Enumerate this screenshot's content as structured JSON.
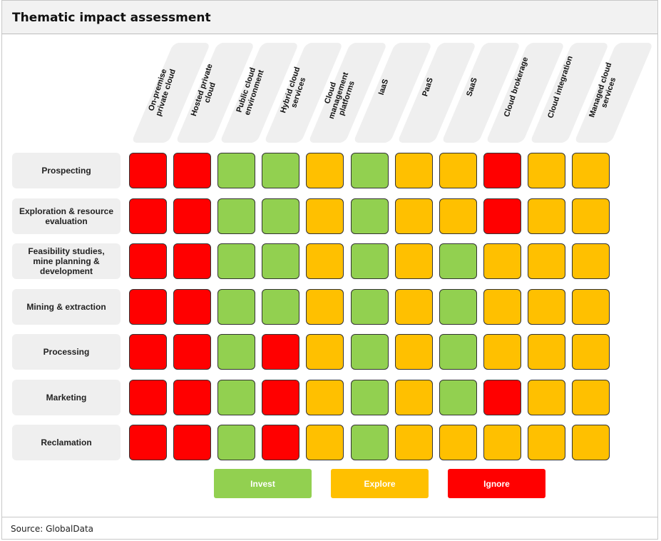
{
  "title": "Thematic impact assessment",
  "source": "Source: GlobalData",
  "colors": {
    "invest": "#92d050",
    "explore": "#ffc000",
    "ignore": "#ff0000"
  },
  "chart_data": {
    "type": "table",
    "title": "Thematic impact assessment",
    "columns": [
      "On-premise private cloud",
      "Hosted private cloud",
      "Public cloud environment",
      "Hybrid cloud services",
      "Cloud management platforms",
      "IaaS",
      "PaaS",
      "SaaS",
      "Cloud brokerage",
      "Cloud integration",
      "Managed cloud services"
    ],
    "rows": [
      "Prospecting",
      "Exploration & resource evaluation",
      "Feasibility studies, mine planning & development",
      "Mining & extraction",
      "Processing",
      "Marketing",
      "Reclamation"
    ],
    "values": [
      [
        "ignore",
        "ignore",
        "invest",
        "invest",
        "explore",
        "invest",
        "explore",
        "explore",
        "ignore",
        "explore",
        "explore"
      ],
      [
        "ignore",
        "ignore",
        "invest",
        "invest",
        "explore",
        "invest",
        "explore",
        "explore",
        "ignore",
        "explore",
        "explore"
      ],
      [
        "ignore",
        "ignore",
        "invest",
        "invest",
        "explore",
        "invest",
        "explore",
        "invest",
        "explore",
        "explore",
        "explore"
      ],
      [
        "ignore",
        "ignore",
        "invest",
        "invest",
        "explore",
        "invest",
        "explore",
        "invest",
        "explore",
        "explore",
        "explore"
      ],
      [
        "ignore",
        "ignore",
        "invest",
        "ignore",
        "explore",
        "invest",
        "explore",
        "invest",
        "explore",
        "explore",
        "explore"
      ],
      [
        "ignore",
        "ignore",
        "invest",
        "ignore",
        "explore",
        "invest",
        "explore",
        "invest",
        "ignore",
        "explore",
        "explore"
      ],
      [
        "ignore",
        "ignore",
        "invest",
        "ignore",
        "explore",
        "invest",
        "explore",
        "explore",
        "explore",
        "explore",
        "explore"
      ]
    ],
    "legend": [
      {
        "key": "invest",
        "label": "Invest"
      },
      {
        "key": "explore",
        "label": "Explore"
      },
      {
        "key": "ignore",
        "label": "Ignore"
      }
    ]
  }
}
